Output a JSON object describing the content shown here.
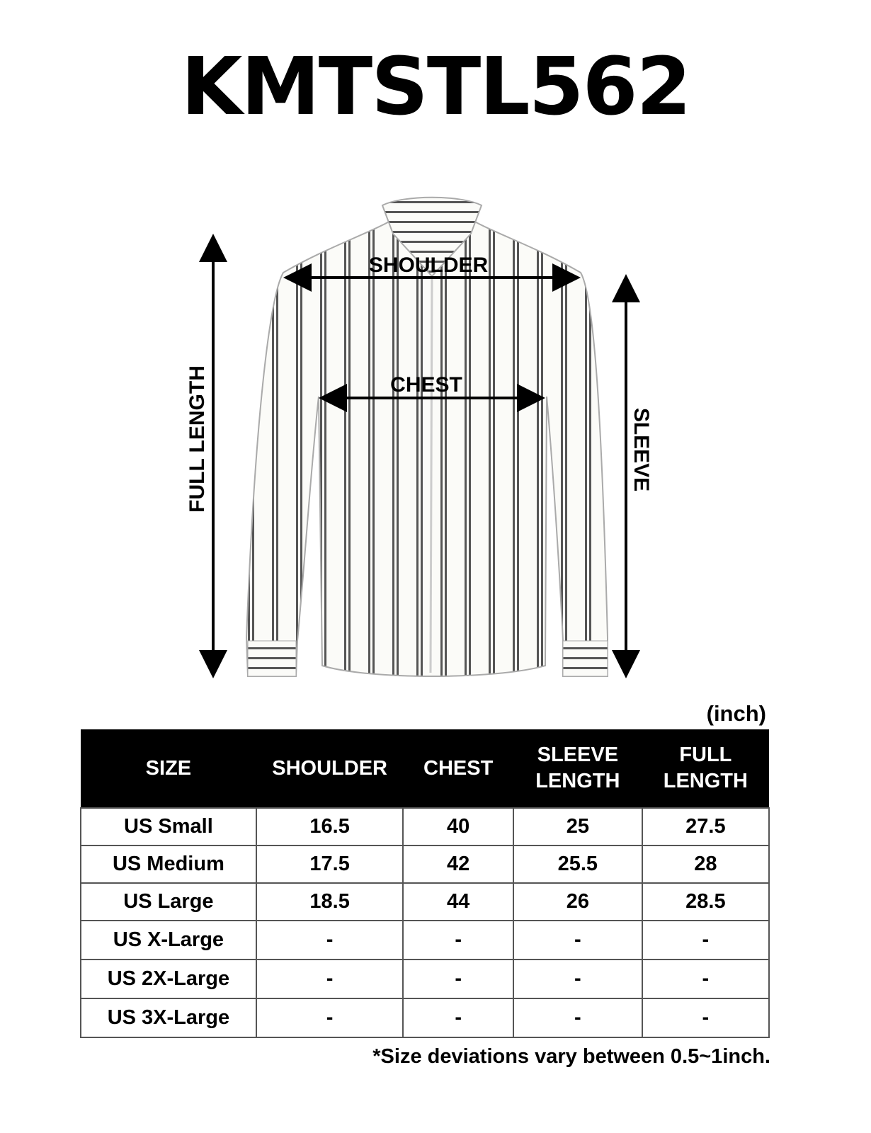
{
  "title": "KMTSTL562",
  "diagram": {
    "shoulder_label": "SHOULDER",
    "chest_label": "CHEST",
    "full_length_label": "FULL LENGTH",
    "sleeve_label": "SLEEVE"
  },
  "unit": "(inch)",
  "table": {
    "headers": [
      "SIZE",
      "SHOULDER",
      "CHEST",
      "SLEEVE LENGTH",
      "FULL LENGTH"
    ],
    "rows": [
      [
        "US Small",
        "16.5",
        "40",
        "25",
        "27.5"
      ],
      [
        "US Medium",
        "17.5",
        "42",
        "25.5",
        "28"
      ],
      [
        "US Large",
        "18.5",
        "44",
        "26",
        "28.5"
      ],
      [
        "US X-Large",
        "-",
        "-",
        "-",
        "-"
      ],
      [
        "US 2X-Large",
        "-",
        "-",
        "-",
        "-"
      ],
      [
        "US 3X-Large",
        "-",
        "-",
        "-",
        "-"
      ]
    ]
  },
  "note": "*Size deviations vary between 0.5~1inch."
}
